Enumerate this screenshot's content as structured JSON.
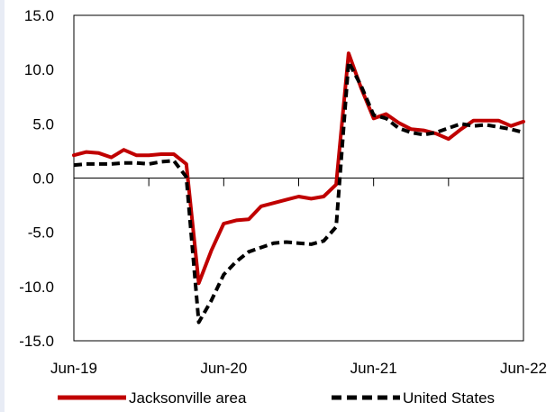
{
  "chart_data": {
    "type": "line",
    "x": [
      "Jun-19",
      "Jul-19",
      "Aug-19",
      "Sep-19",
      "Oct-19",
      "Nov-19",
      "Dec-19",
      "Jan-20",
      "Feb-20",
      "Mar-20",
      "Apr-20",
      "May-20",
      "Jun-20",
      "Jul-20",
      "Aug-20",
      "Sep-20",
      "Oct-20",
      "Nov-20",
      "Dec-20",
      "Jan-21",
      "Feb-21",
      "Mar-21",
      "Apr-21",
      "May-21",
      "Jun-21",
      "Jul-21",
      "Aug-21",
      "Sep-21",
      "Oct-21",
      "Nov-21",
      "Dec-21",
      "Jan-22",
      "Feb-22",
      "Mar-22",
      "Apr-22",
      "May-22",
      "Jun-22"
    ],
    "x_tick_labels": [
      "Jun-19",
      "Jun-20",
      "Jun-21",
      "Jun-22"
    ],
    "y_tick_labels": [
      "15.0",
      "10.0",
      "5.0",
      "0.0",
      "-5.0",
      "-10.0",
      "-15.0"
    ],
    "ylim": [
      -15,
      15
    ],
    "legend_position": "bottom",
    "series": [
      {
        "name": "Jacksonville area",
        "color": "#c00000",
        "style": "solid",
        "values": [
          2.1,
          2.4,
          2.3,
          1.9,
          2.6,
          2.1,
          2.1,
          2.2,
          2.2,
          1.3,
          -9.7,
          -6.7,
          -4.2,
          -3.9,
          -3.8,
          -2.6,
          -2.3,
          -2.0,
          -1.7,
          -1.9,
          -1.7,
          -0.6,
          11.5,
          8.3,
          5.5,
          5.9,
          5.1,
          4.5,
          4.4,
          4.1,
          3.6,
          4.5,
          5.3,
          5.3,
          5.3,
          4.8,
          5.2
        ]
      },
      {
        "name": "United States",
        "color": "#000000",
        "style": "dashed",
        "values": [
          1.2,
          1.3,
          1.3,
          1.3,
          1.4,
          1.4,
          1.3,
          1.5,
          1.6,
          0.1,
          -13.3,
          -11.3,
          -8.9,
          -7.7,
          -6.8,
          -6.4,
          -6.0,
          -5.9,
          -6.0,
          -6.1,
          -5.8,
          -4.5,
          10.7,
          8.5,
          5.8,
          5.5,
          4.6,
          4.2,
          4.0,
          4.2,
          4.6,
          5.0,
          4.8,
          4.9,
          4.7,
          4.5,
          4.2
        ]
      }
    ],
    "title": "",
    "xlabel": "",
    "ylabel": ""
  }
}
